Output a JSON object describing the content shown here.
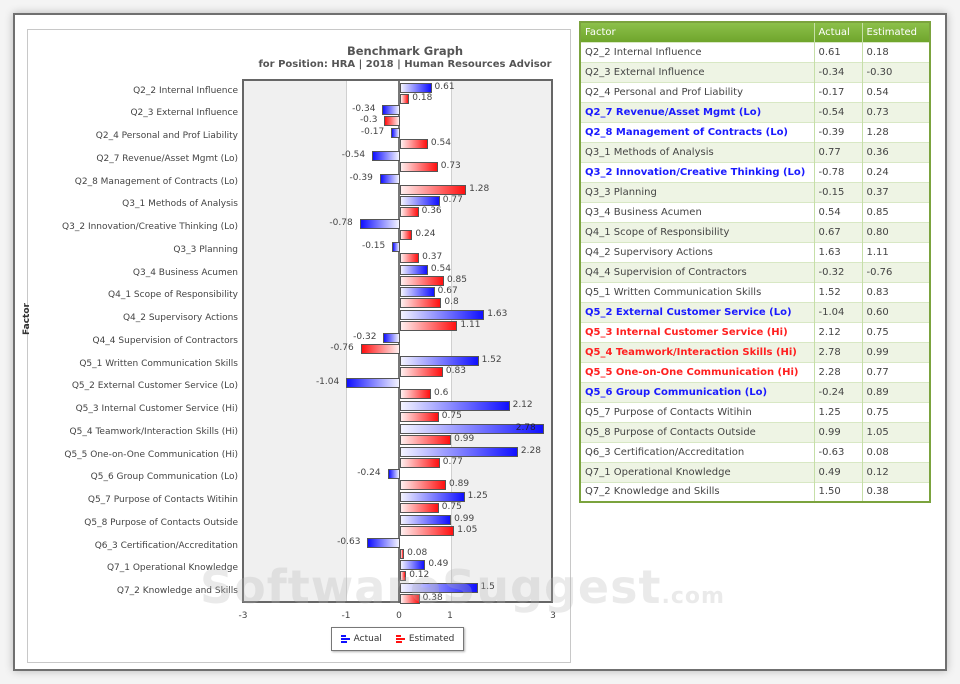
{
  "chart": {
    "title": "Benchmark Graph",
    "subtitle": "for Position: HRA | 2018 | Human Resources Advisor",
    "y_axis_title": "Factor",
    "x_ticks": [
      "-3",
      "-1",
      "0",
      "1",
      "3"
    ],
    "legend": {
      "actual": "Actual",
      "estimated": "Estimated"
    },
    "colors": {
      "actual": "#1010ff",
      "estimated": "#ff1010"
    }
  },
  "watermark": {
    "main": "SoftwareSuggest",
    "suffix": ".com"
  },
  "table": {
    "headers": {
      "factor": "Factor",
      "actual": "Actual",
      "estimated": "Estimated"
    },
    "header_color": "#7ab23b",
    "rows": [
      {
        "factor": "Q2_2 Internal Influence",
        "actual": "0.61",
        "estimated": "0.18",
        "flag": ""
      },
      {
        "factor": "Q2_3 External Influence",
        "actual": "-0.34",
        "estimated": "-0.30",
        "flag": ""
      },
      {
        "factor": "Q2_4 Personal and Prof Liability",
        "actual": "-0.17",
        "estimated": "0.54",
        "flag": ""
      },
      {
        "factor": "Q2_7 Revenue/Asset Mgmt (Lo)",
        "actual": "-0.54",
        "estimated": "0.73",
        "flag": "lo"
      },
      {
        "factor": "Q2_8 Management of Contracts (Lo)",
        "actual": "-0.39",
        "estimated": "1.28",
        "flag": "lo"
      },
      {
        "factor": "Q3_1 Methods of Analysis",
        "actual": "0.77",
        "estimated": "0.36",
        "flag": ""
      },
      {
        "factor": "Q3_2 Innovation/Creative Thinking (Lo)",
        "actual": "-0.78",
        "estimated": "0.24",
        "flag": "lo"
      },
      {
        "factor": "Q3_3 Planning",
        "actual": "-0.15",
        "estimated": "0.37",
        "flag": ""
      },
      {
        "factor": "Q3_4 Business Acumen",
        "actual": "0.54",
        "estimated": "0.85",
        "flag": ""
      },
      {
        "factor": "Q4_1 Scope of Responsibility",
        "actual": "0.67",
        "estimated": "0.80",
        "flag": ""
      },
      {
        "factor": "Q4_2 Supervisory Actions",
        "actual": "1.63",
        "estimated": "1.11",
        "flag": ""
      },
      {
        "factor": "Q4_4 Supervision of Contractors",
        "actual": "-0.32",
        "estimated": "-0.76",
        "flag": ""
      },
      {
        "factor": "Q5_1 Written Communication Skills",
        "actual": "1.52",
        "estimated": "0.83",
        "flag": ""
      },
      {
        "factor": "Q5_2 External Customer Service (Lo)",
        "actual": "-1.04",
        "estimated": "0.60",
        "flag": "lo"
      },
      {
        "factor": "Q5_3 Internal Customer Service (Hi)",
        "actual": "2.12",
        "estimated": "0.75",
        "flag": "hi"
      },
      {
        "factor": "Q5_4 Teamwork/Interaction Skills (Hi)",
        "actual": "2.78",
        "estimated": "0.99",
        "flag": "hi"
      },
      {
        "factor": "Q5_5 One-on-One Communication (Hi)",
        "actual": "2.28",
        "estimated": "0.77",
        "flag": "hi"
      },
      {
        "factor": "Q5_6 Group Communication (Lo)",
        "actual": "-0.24",
        "estimated": "0.89",
        "flag": "lo"
      },
      {
        "factor": "Q5_7 Purpose of Contacts Witihin",
        "actual": "1.25",
        "estimated": "0.75",
        "flag": ""
      },
      {
        "factor": "Q5_8 Purpose of Contacts Outside",
        "actual": "0.99",
        "estimated": "1.05",
        "flag": ""
      },
      {
        "factor": "Q6_3 Certification/Accreditation",
        "actual": "-0.63",
        "estimated": "0.08",
        "flag": ""
      },
      {
        "factor": "Q7_1 Operational Knowledge",
        "actual": "0.49",
        "estimated": "0.12",
        "flag": ""
      },
      {
        "factor": "Q7_2 Knowledge and Skills",
        "actual": "1.50",
        "estimated": "0.38",
        "flag": ""
      }
    ]
  },
  "chart_data": {
    "type": "bar",
    "orientation": "horizontal",
    "title": "Benchmark Graph",
    "subtitle": "for Position: HRA | 2018 | Human Resources Advisor",
    "xlabel": "",
    "ylabel": "Factor",
    "xlim": [
      -3,
      3
    ],
    "x_ticks": [
      -3,
      -1,
      0,
      1,
      3
    ],
    "grid": true,
    "legend_position": "bottom",
    "categories": [
      "Q2_2 Internal Influence",
      "Q2_3 External Influence",
      "Q2_4 Personal and Prof Liability",
      "Q2_7 Revenue/Asset Mgmt (Lo)",
      "Q2_8 Management of Contracts (Lo)",
      "Q3_1 Methods of Analysis",
      "Q3_2 Innovation/Creative Thinking (Lo)",
      "Q3_3 Planning",
      "Q3_4 Business Acumen",
      "Q4_1 Scope of Responsibility",
      "Q4_2 Supervisory Actions",
      "Q4_4 Supervision of Contractors",
      "Q5_1 Written Communication Skills",
      "Q5_2 External Customer Service (Lo)",
      "Q5_3 Internal Customer Service (Hi)",
      "Q5_4 Teamwork/Interaction Skills (Hi)",
      "Q5_5 One-on-One Communication (Hi)",
      "Q5_6 Group Communication (Lo)",
      "Q5_7 Purpose of Contacts Witihin",
      "Q5_8 Purpose of Contacts Outside",
      "Q6_3 Certification/Accreditation",
      "Q7_1 Operational Knowledge",
      "Q7_2 Knowledge and Skills"
    ],
    "series": [
      {
        "name": "Actual",
        "color": "#1010ff",
        "values": [
          0.61,
          -0.34,
          -0.17,
          -0.54,
          -0.39,
          0.77,
          -0.78,
          -0.15,
          0.54,
          0.67,
          1.63,
          -0.32,
          1.52,
          -1.04,
          2.12,
          2.78,
          2.28,
          -0.24,
          1.25,
          0.99,
          -0.63,
          0.49,
          1.5
        ]
      },
      {
        "name": "Estimated",
        "color": "#ff1010",
        "values": [
          0.18,
          -0.3,
          0.54,
          0.73,
          1.28,
          0.36,
          0.24,
          0.37,
          0.85,
          0.8,
          1.11,
          -0.76,
          0.83,
          0.6,
          0.75,
          0.99,
          0.77,
          0.89,
          0.75,
          1.05,
          0.08,
          0.12,
          0.38
        ]
      }
    ],
    "value_labels": {
      "Actual": [
        "0.61",
        "-0.34",
        "-0.17",
        "-0.54",
        "-0.39",
        "0.77",
        "-0.78",
        "-0.15",
        "0.54",
        "0.67",
        "1.63",
        "-0.32",
        "1.52",
        "-1.04",
        "2.12",
        "2.78",
        "2.28",
        "-0.24",
        "1.25",
        "0.99",
        "-0.63",
        "0.49",
        "1.5"
      ],
      "Estimated": [
        "0.18",
        "-0.3",
        "0.54",
        "0.73",
        "1.28",
        "0.36",
        "0.24",
        "0.37",
        "0.85",
        "0.8",
        "1.11",
        "-0.76",
        "0.83",
        "0.6",
        "0.75",
        "0.99",
        "0.77",
        "0.89",
        "0.75",
        "1.05",
        "0.08",
        "0.12",
        "0.38"
      ]
    }
  }
}
